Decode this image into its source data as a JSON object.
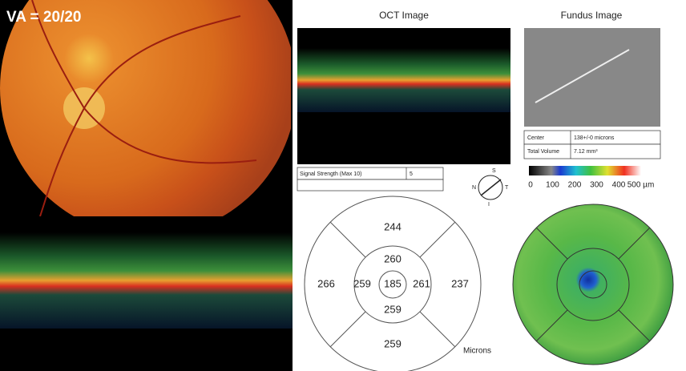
{
  "left": {
    "va_label": "VA = 20/20"
  },
  "oct": {
    "title": "OCT Image",
    "signal_label": "Signal Strength (Max 10)",
    "signal_value": "5"
  },
  "compass": {
    "top": "S",
    "right": "T",
    "bottom": "I",
    "left": "N"
  },
  "fundus": {
    "title": "Fundus Image",
    "table": [
      [
        "Center",
        "138+/-0 microns"
      ],
      [
        "Total Volume",
        "7.12 mm³"
      ]
    ]
  },
  "color_scale": {
    "labels": [
      "0",
      "100",
      "200",
      "300",
      "400",
      "500 µm"
    ]
  },
  "etdrs": {
    "outer_superior": "244",
    "outer_nasal": "266",
    "outer_temporal": "237",
    "outer_inferior": "259",
    "inner_superior": "260",
    "inner_nasal": "259",
    "inner_temporal": "261",
    "inner_inferior": "259",
    "center": "185",
    "unit": "Microns"
  }
}
